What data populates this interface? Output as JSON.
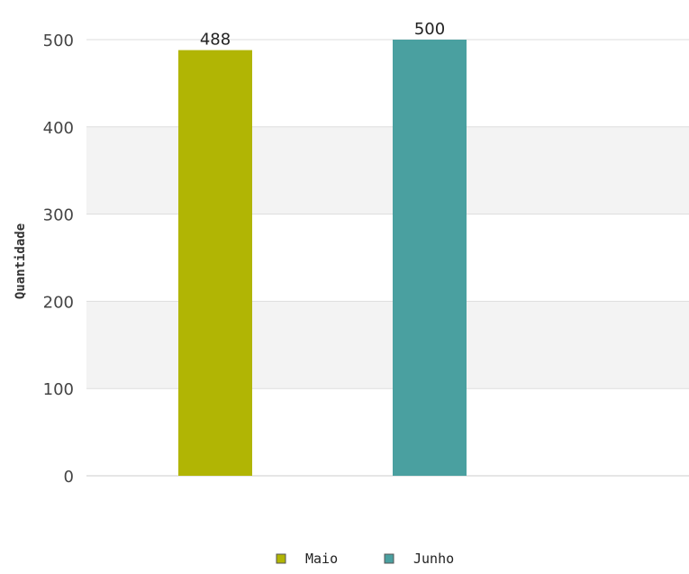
{
  "chart_data": {
    "type": "bar",
    "categories": [
      "Maio",
      "Junho"
    ],
    "values": [
      488,
      500
    ],
    "colors": [
      "#b1b504",
      "#4aa0a0"
    ],
    "ylabel": "Quantidade",
    "ylim": [
      0,
      500
    ],
    "yticks": [
      0,
      100,
      200,
      300,
      400,
      500
    ],
    "grid": true,
    "band_colors": [
      "#ffffff",
      "#f3f3f3"
    ],
    "legend": {
      "position": "bottom",
      "entries": [
        "Maio",
        "Junho"
      ]
    }
  }
}
